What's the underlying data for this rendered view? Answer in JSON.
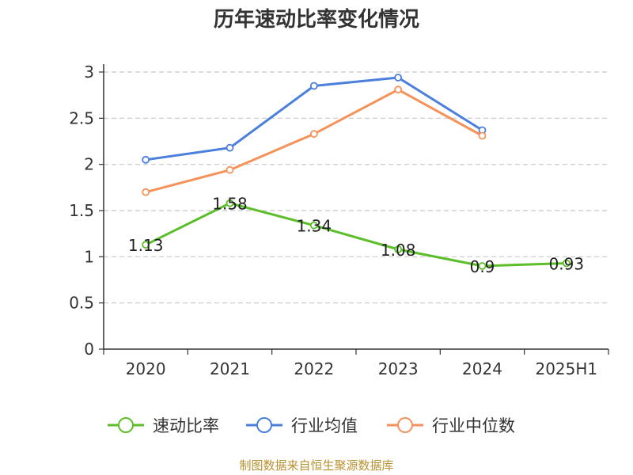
{
  "chart_data": {
    "type": "line",
    "title": "历年速动比率变化情况",
    "categories": [
      "2020",
      "2021",
      "2022",
      "2023",
      "2024",
      "2025H1"
    ],
    "ylim": [
      0,
      3
    ],
    "yticks": [
      "0",
      "0.5",
      "1",
      "1.5",
      "2",
      "2.5",
      "3"
    ],
    "grid": true,
    "legend_position": "bottom",
    "series": [
      {
        "name": "速动比率",
        "color": "#5cbf2a",
        "values": [
          1.13,
          1.58,
          1.34,
          1.08,
          0.9,
          0.93
        ],
        "labels": [
          "1.13",
          "1.58",
          "1.34",
          "1.08",
          "0.9",
          "0.93"
        ]
      },
      {
        "name": "行业均值",
        "color": "#4a7fdc",
        "values": [
          2.05,
          2.18,
          2.85,
          2.94,
          2.37,
          null
        ]
      },
      {
        "name": "行业中位数",
        "color": "#f5925a",
        "values": [
          1.7,
          1.94,
          2.33,
          2.81,
          2.31,
          null
        ]
      }
    ]
  },
  "source": "制图数据来自恒生聚源数据库"
}
